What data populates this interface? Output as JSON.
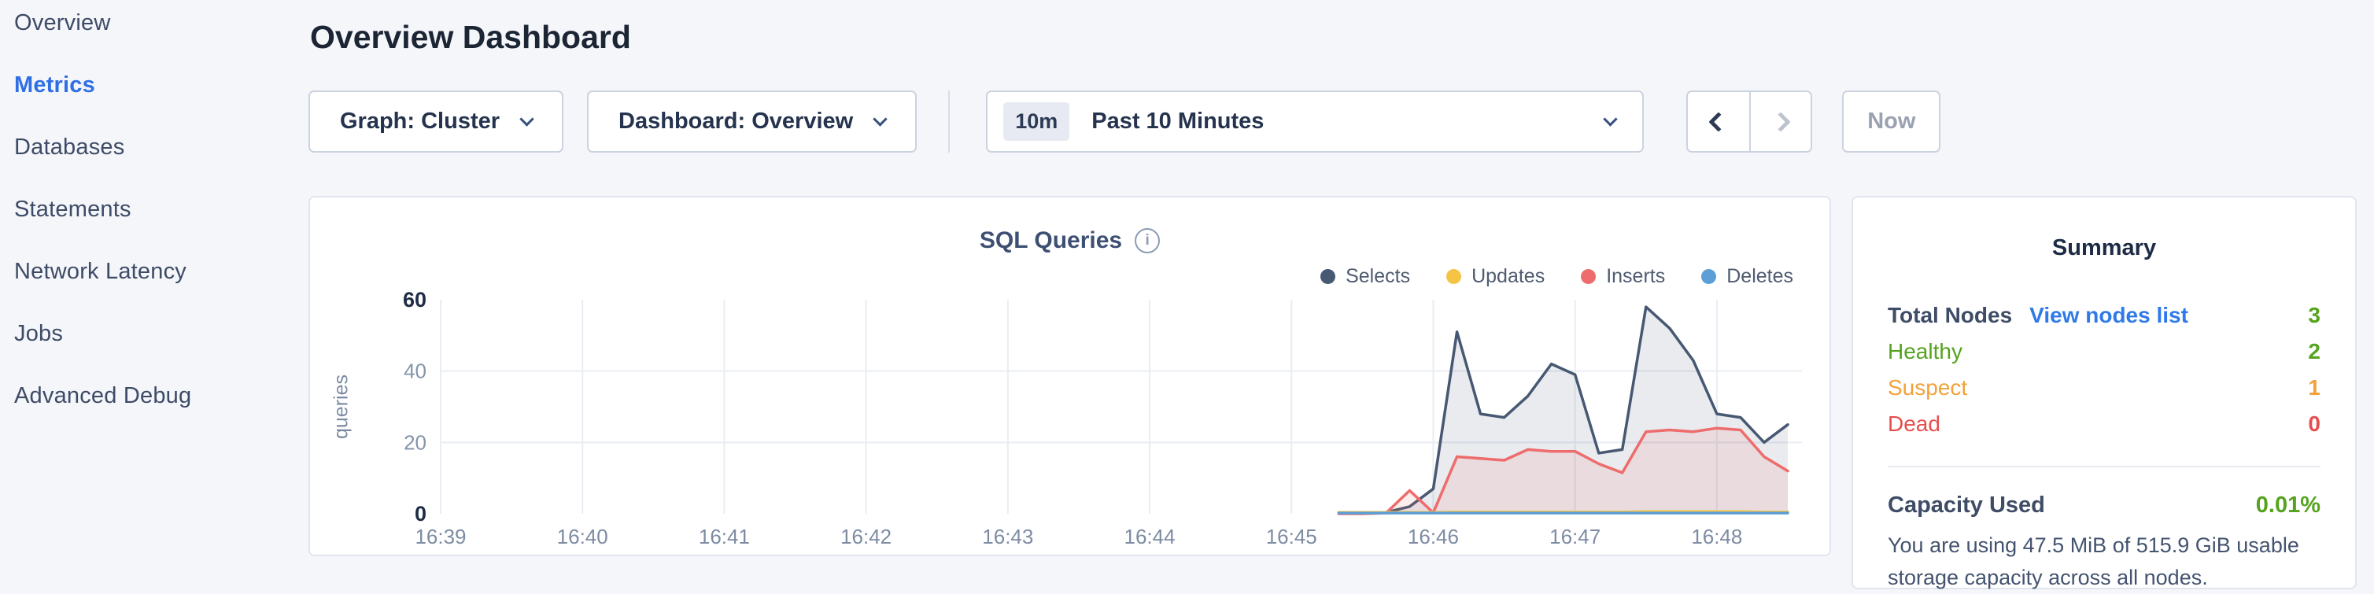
{
  "sidebar": {
    "items": [
      {
        "label": "Overview",
        "active": false
      },
      {
        "label": "Metrics",
        "active": true
      },
      {
        "label": "Databases",
        "active": false
      },
      {
        "label": "Statements",
        "active": false
      },
      {
        "label": "Network Latency",
        "active": false
      },
      {
        "label": "Jobs",
        "active": false
      },
      {
        "label": "Advanced Debug",
        "active": false
      }
    ],
    "active_color": "#2f6fe4"
  },
  "header": {
    "title": "Overview Dashboard"
  },
  "controls": {
    "graph_dropdown": "Graph: Cluster",
    "dashboard_dropdown": "Dashboard: Overview",
    "time_badge": "10m",
    "time_label": "Past 10 Minutes",
    "now_label": "Now"
  },
  "chart_data": {
    "type": "area",
    "title": "SQL Queries",
    "ylabel": "queries",
    "ylim": [
      0,
      60
    ],
    "yticks": [
      0,
      20,
      40,
      60
    ],
    "grid_y": [
      20,
      40
    ],
    "x_tick_minutes": [
      39,
      40,
      41,
      42,
      43,
      44,
      45,
      46,
      47,
      48
    ],
    "x_ticks": [
      "16:39",
      "16:40",
      "16:41",
      "16:42",
      "16:43",
      "16:44",
      "16:45",
      "16:46",
      "16:47",
      "16:48"
    ],
    "x_domain_minutes": [
      39.0,
      48.6
    ],
    "legend_position": "top-right",
    "point_times_minutes": [
      45.333,
      45.5,
      45.667,
      45.833,
      46.0,
      46.167,
      46.333,
      46.5,
      46.667,
      46.833,
      47.0,
      47.167,
      47.333,
      47.5,
      47.667,
      47.833,
      48.0,
      48.167,
      48.333,
      48.5
    ],
    "draw_order": [
      0,
      2,
      1,
      3
    ],
    "series": [
      {
        "name": "Selects",
        "color": "#475872",
        "fill": "rgba(71,88,114,0.12)",
        "values": [
          0.3,
          0.3,
          0.4,
          2,
          7,
          51,
          28,
          27,
          33,
          42,
          39,
          17,
          18,
          58,
          52,
          43,
          28,
          27,
          20,
          25
        ]
      },
      {
        "name": "Updates",
        "color": "#f5c444",
        "fill": "rgba(245,196,68,0.12)",
        "values": [
          0.4,
          0.4,
          0.4,
          0.4,
          0.4,
          0.5,
          0.5,
          0.5,
          0.5,
          0.5,
          0.5,
          0.5,
          0.5,
          0.6,
          0.6,
          0.6,
          0.6,
          0.6,
          0.5,
          0.5
        ]
      },
      {
        "name": "Inserts",
        "color": "#ee6c6c",
        "fill": "rgba(238,108,108,0.12)",
        "values": [
          0,
          0,
          0.2,
          6.5,
          0.3,
          16,
          15.5,
          15,
          18,
          17.5,
          17.5,
          14,
          11.5,
          23,
          23.5,
          23,
          24,
          23.5,
          16,
          12
        ]
      },
      {
        "name": "Deletes",
        "color": "#5b9fd6",
        "fill": "rgba(91,159,214,0.12)",
        "values": [
          0.2,
          0.2,
          0.2,
          0.2,
          0.2,
          0.2,
          0.2,
          0.2,
          0.2,
          0.2,
          0.2,
          0.2,
          0.2,
          0.2,
          0.2,
          0.2,
          0.2,
          0.2,
          0.2,
          0.2
        ]
      }
    ]
  },
  "summary": {
    "title": "Summary",
    "total_nodes_label": "Total Nodes",
    "view_nodes_link": "View nodes list",
    "total_nodes_value": "3",
    "rows": [
      {
        "label": "Healthy",
        "value": "2",
        "color": "#55a31e"
      },
      {
        "label": "Suspect",
        "value": "1",
        "color": "#f1a23a"
      },
      {
        "label": "Dead",
        "value": "0",
        "color": "#e84d4d"
      }
    ],
    "total_value_color": "#55a31e",
    "link_color": "#2f7ae8",
    "capacity_label": "Capacity Used",
    "capacity_value": "0.01%",
    "capacity_value_color": "#55a31e",
    "capacity_description": "You are using 47.5 MiB of 515.9 GiB usable storage capacity across all nodes."
  }
}
